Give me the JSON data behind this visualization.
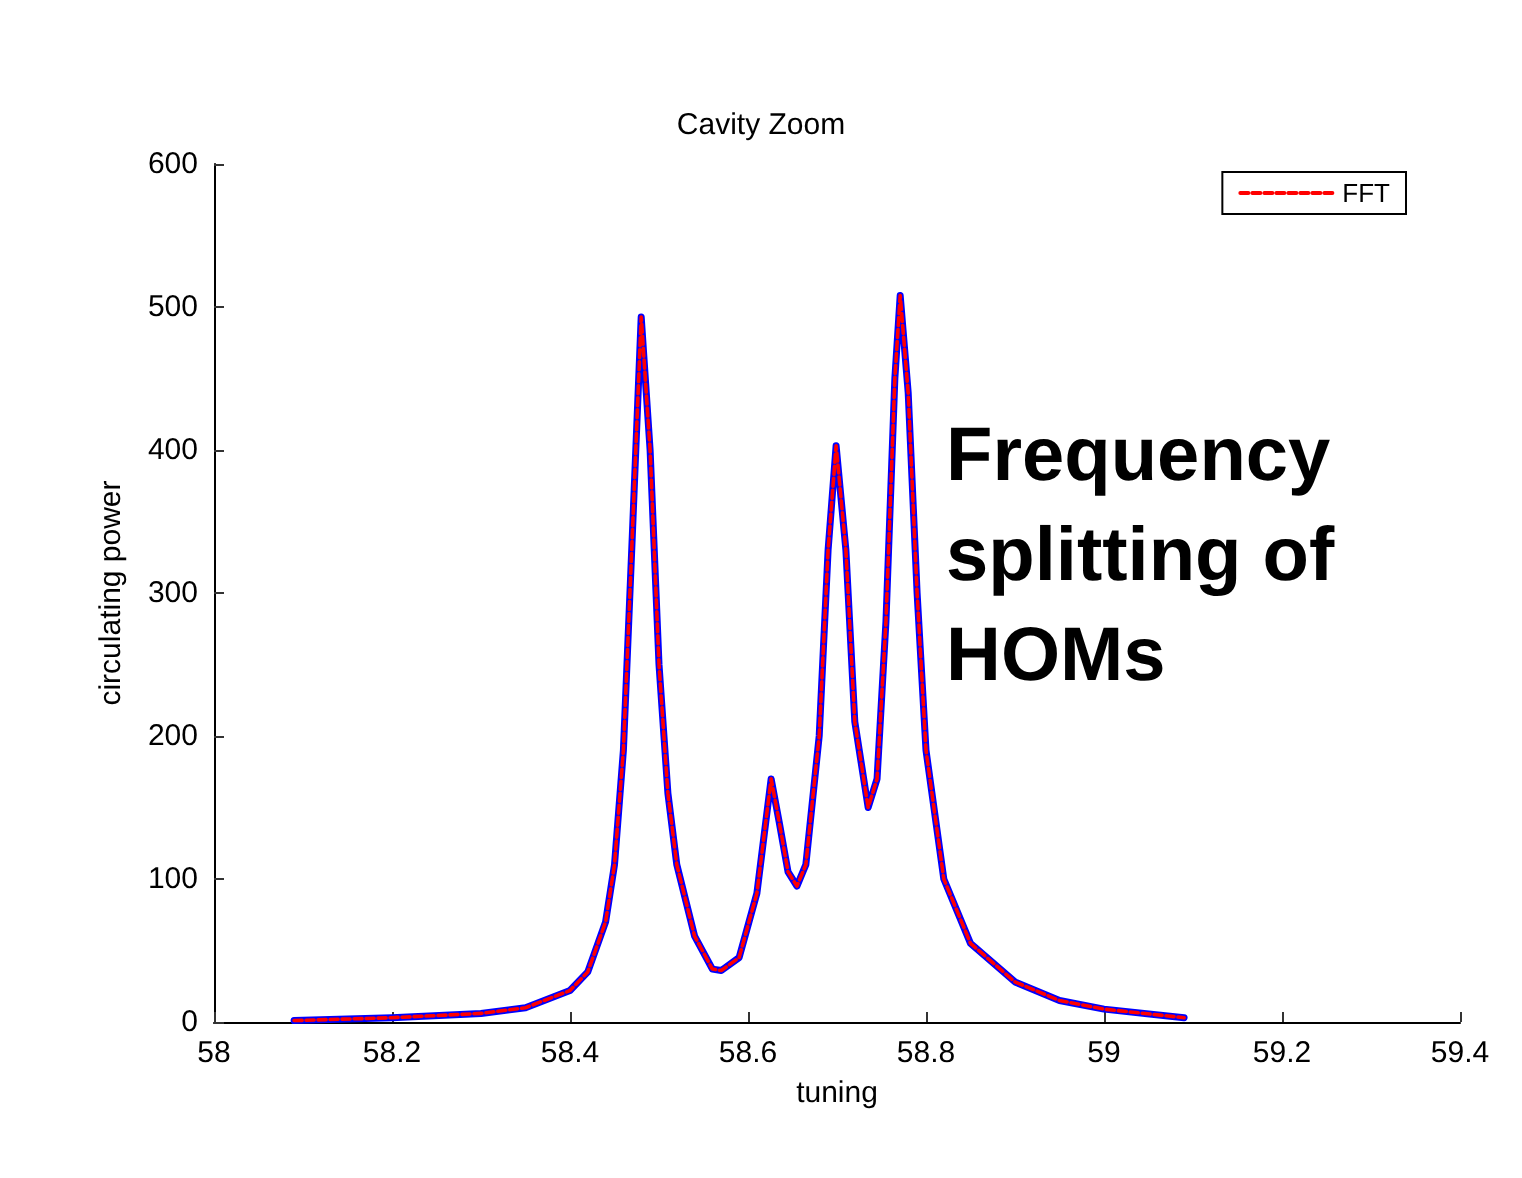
{
  "chart_data": {
    "type": "line",
    "title": "Cavity Zoom",
    "xlabel": "tuning",
    "ylabel": "circulating power",
    "annotations": [
      "Frequency splitting of HOMs"
    ],
    "x": [
      58.09,
      58.2,
      58.3,
      58.35,
      58.4,
      58.42,
      58.44,
      58.45,
      58.46,
      58.47,
      58.48,
      58.49,
      58.5,
      58.51,
      58.52,
      58.54,
      58.56,
      58.57,
      58.59,
      58.61,
      58.62,
      58.626,
      58.635,
      58.645,
      58.655,
      58.665,
      58.68,
      58.69,
      58.699,
      58.71,
      58.72,
      58.735,
      58.745,
      58.755,
      58.765,
      58.771,
      58.78,
      58.79,
      58.8,
      58.82,
      58.85,
      58.9,
      58.95,
      59.0,
      59.09
    ],
    "series": [
      {
        "color": "#0000ff",
        "line_style": "solid",
        "values": [
          1,
          3,
          6,
          10,
          22,
          35,
          70,
          110,
          190,
          340,
          493,
          400,
          250,
          160,
          110,
          60,
          37,
          36,
          45,
          90,
          140,
          170,
          140,
          105,
          95,
          110,
          200,
          330,
          403,
          330,
          210,
          150,
          170,
          280,
          450,
          508,
          440,
          300,
          190,
          100,
          55,
          28,
          15,
          9,
          3
        ]
      },
      {
        "name": "FFT",
        "color": "#ff0000",
        "line_style": "dashed",
        "values": [
          1,
          3,
          6,
          10,
          22,
          35,
          70,
          110,
          190,
          340,
          493,
          400,
          250,
          160,
          110,
          60,
          37,
          36,
          45,
          90,
          140,
          170,
          140,
          105,
          95,
          110,
          200,
          330,
          403,
          330,
          210,
          150,
          170,
          280,
          450,
          508,
          440,
          300,
          190,
          100,
          55,
          28,
          15,
          9,
          3
        ]
      }
    ],
    "xlim": [
      58,
      59.4
    ],
    "xticks": [
      58,
      58.2,
      58.4,
      58.6,
      58.8,
      59,
      59.2,
      59.4
    ],
    "ylim": [
      0,
      600
    ],
    "yticks": [
      0,
      100,
      200,
      300,
      400,
      500,
      600
    ],
    "grid": false,
    "legend": "top right",
    "marker": "none"
  }
}
